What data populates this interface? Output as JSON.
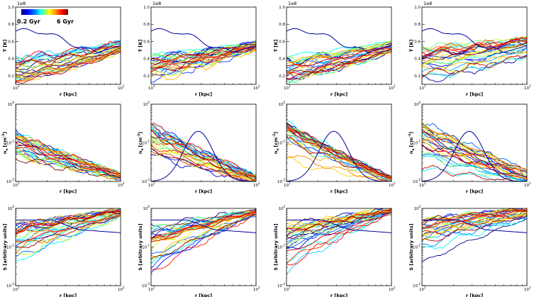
{
  "figure": {
    "colorbar": {
      "label_left": "0.2 Gyr",
      "label_right": "6 Gyr",
      "colormap": "jet",
      "tmin_gyr": 0.2,
      "tmax_gyr": 6.0
    },
    "colors": {
      "jet": [
        "#00007f",
        "#0000ff",
        "#007fff",
        "#00ffff",
        "#7fff7f",
        "#ffff00",
        "#ff7f00",
        "#ff0000",
        "#7f0000"
      ]
    }
  },
  "chart_data": [
    {
      "type": "line",
      "row": "T",
      "col": 1,
      "ylabel": "T [K]",
      "xlabel": "r [kpc]",
      "offset_label": "1e8",
      "xscale": "log",
      "xlim": [
        10,
        100
      ],
      "yscale": "linear",
      "ylim": [
        0.1,
        1.0
      ],
      "xticks": [
        {
          "v": 10,
          "label": "10",
          "sup": "1"
        },
        {
          "v": 100,
          "label": "10",
          "sup": "2"
        }
      ],
      "yticks": [
        {
          "v": 0.2,
          "label": "0.2"
        },
        {
          "v": 0.4,
          "label": "0.4"
        },
        {
          "v": 0.6,
          "label": "0.6"
        },
        {
          "v": 0.8,
          "label": "0.8"
        },
        {
          "v": 1.0,
          "label": "1.0"
        }
      ],
      "series_count": 28,
      "outlier": true,
      "band_start": [
        0.12,
        0.42
      ],
      "band_end": [
        0.46,
        0.6
      ]
    },
    {
      "type": "line",
      "row": "T",
      "col": 2,
      "ylabel": "T [K]",
      "xlabel": "r [kpc]",
      "offset_label": "1e8",
      "xscale": "log",
      "xlim": [
        10,
        100
      ],
      "yscale": "linear",
      "ylim": [
        0.1,
        1.0
      ],
      "xticks": [
        {
          "v": 10,
          "label": "10",
          "sup": "1"
        },
        {
          "v": 100,
          "label": "10",
          "sup": "2"
        }
      ],
      "yticks": [
        {
          "v": 0.2,
          "label": "0.2"
        },
        {
          "v": 0.4,
          "label": "0.4"
        },
        {
          "v": 0.6,
          "label": "0.6"
        },
        {
          "v": 0.8,
          "label": "0.8"
        },
        {
          "v": 1.0,
          "label": "1.0"
        }
      ],
      "series_count": 28,
      "outlier": true,
      "band_start": [
        0.15,
        0.45
      ],
      "band_end": [
        0.5,
        0.6
      ]
    },
    {
      "type": "line",
      "row": "T",
      "col": 3,
      "ylabel": "T [K]",
      "xlabel": "r [kpc]",
      "offset_label": "1e8",
      "xscale": "log",
      "xlim": [
        10,
        100
      ],
      "yscale": "linear",
      "ylim": [
        0.1,
        1.0
      ],
      "xticks": [
        {
          "v": 10,
          "label": "10",
          "sup": "1"
        },
        {
          "v": 100,
          "label": "10",
          "sup": "2"
        }
      ],
      "yticks": [
        {
          "v": 0.2,
          "label": "0.2"
        },
        {
          "v": 0.4,
          "label": "0.4"
        },
        {
          "v": 0.6,
          "label": "0.6"
        },
        {
          "v": 0.8,
          "label": "0.8"
        },
        {
          "v": 1.0,
          "label": "1.0"
        }
      ],
      "series_count": 28,
      "outlier": true,
      "band_start": [
        0.15,
        0.48
      ],
      "band_end": [
        0.48,
        0.62
      ]
    },
    {
      "type": "line",
      "row": "T",
      "col": 4,
      "ylabel": "T [K]",
      "xlabel": "r [kpc]",
      "offset_label": "1e8",
      "xscale": "log",
      "xlim": [
        10,
        100
      ],
      "yscale": "linear",
      "ylim": [
        0.1,
        1.0
      ],
      "xticks": [
        {
          "v": 10,
          "label": "10",
          "sup": "1"
        },
        {
          "v": 100,
          "label": "10",
          "sup": "2"
        }
      ],
      "yticks": [
        {
          "v": 0.2,
          "label": "0.2"
        },
        {
          "v": 0.4,
          "label": "0.4"
        },
        {
          "v": 0.6,
          "label": "0.6"
        },
        {
          "v": 0.8,
          "label": "0.8"
        },
        {
          "v": 1.0,
          "label": "1.0"
        }
      ],
      "series_count": 28,
      "outlier": true,
      "band_start": [
        0.15,
        0.55
      ],
      "band_end": [
        0.42,
        0.66
      ]
    },
    {
      "type": "line",
      "row": "n",
      "col": 1,
      "ylabel": "n",
      "ylabel_sub": "e",
      "ylabel_unit": "[cm",
      "ylabel_sup": "-3",
      "xlabel": "r [kpc]",
      "xscale": "log",
      "xlim": [
        10,
        100
      ],
      "yscale": "log",
      "ylim": [
        0.01,
        1.0
      ],
      "xticks": [
        {
          "v": 10,
          "label": "10",
          "sup": "1"
        },
        {
          "v": 100,
          "label": "10",
          "sup": "2"
        }
      ],
      "yticks": [
        {
          "v": 0.01,
          "label": "10",
          "sup": "-2"
        },
        {
          "v": 0.1,
          "label": "10",
          "sup": "-1"
        },
        {
          "v": 1.0,
          "label": "10",
          "sup": "0"
        }
      ],
      "series_count": 28,
      "outlier": false,
      "band_start": [
        0.04,
        0.18
      ],
      "band_end": [
        0.012,
        0.016
      ]
    },
    {
      "type": "line",
      "row": "n",
      "col": 2,
      "ylabel": "n",
      "ylabel_sub": "e",
      "ylabel_unit": "[cm",
      "ylabel_sup": "-3",
      "xlabel": "r [kpc]",
      "xscale": "log",
      "xlim": [
        10,
        100
      ],
      "yscale": "log",
      "ylim": [
        0.01,
        1.0
      ],
      "xticks": [
        {
          "v": 10,
          "label": "10",
          "sup": "1"
        },
        {
          "v": 100,
          "label": "10",
          "sup": "2"
        }
      ],
      "yticks": [
        {
          "v": 0.01,
          "label": "10",
          "sup": "-2"
        },
        {
          "v": 0.1,
          "label": "10",
          "sup": "-1"
        },
        {
          "v": 1.0,
          "label": "10",
          "sup": "0"
        }
      ],
      "series_count": 28,
      "outlier": true,
      "band_start": [
        0.04,
        0.3
      ],
      "band_end": [
        0.009,
        0.014
      ]
    },
    {
      "type": "line",
      "row": "n",
      "col": 3,
      "ylabel": "n",
      "ylabel_sub": "e",
      "ylabel_unit": "[cm",
      "ylabel_sup": "-3",
      "xlabel": "r [kpc]",
      "xscale": "log",
      "xlim": [
        10,
        100
      ],
      "yscale": "log",
      "ylim": [
        0.01,
        1.0
      ],
      "xticks": [
        {
          "v": 10,
          "label": "10",
          "sup": "1"
        },
        {
          "v": 100,
          "label": "10",
          "sup": "2"
        }
      ],
      "yticks": [
        {
          "v": 0.01,
          "label": "10",
          "sup": "-2"
        },
        {
          "v": 0.1,
          "label": "10",
          "sup": "-1"
        },
        {
          "v": 1.0,
          "label": "10",
          "sup": "0"
        }
      ],
      "series_count": 28,
      "outlier": true,
      "band_start": [
        0.03,
        0.35
      ],
      "band_end": [
        0.009,
        0.013
      ]
    },
    {
      "type": "line",
      "row": "n",
      "col": 4,
      "ylabel": "n",
      "ylabel_sub": "e",
      "ylabel_unit": "[cm",
      "ylabel_sup": "-3",
      "xlabel": "r [kpc]",
      "xscale": "log",
      "xlim": [
        10,
        100
      ],
      "yscale": "log",
      "ylim": [
        0.01,
        1.0
      ],
      "xticks": [
        {
          "v": 10,
          "label": "10",
          "sup": "1"
        },
        {
          "v": 100,
          "label": "10",
          "sup": "2"
        }
      ],
      "yticks": [
        {
          "v": 0.01,
          "label": "10",
          "sup": "-2"
        },
        {
          "v": 0.1,
          "label": "10",
          "sup": "-1"
        },
        {
          "v": 1.0,
          "label": "10",
          "sup": "0"
        }
      ],
      "series_count": 28,
      "outlier": true,
      "band_start": [
        0.02,
        0.35
      ],
      "band_end": [
        0.009,
        0.02
      ]
    },
    {
      "type": "line",
      "row": "S",
      "col": 1,
      "ylabel": "S [arbitrary units]",
      "xlabel": "r [kpc]",
      "xscale": "log",
      "xlim": [
        10,
        100
      ],
      "yscale": "log",
      "ylim": [
        0.01,
        1.0
      ],
      "xticks": [
        {
          "v": 10,
          "label": "10",
          "sup": "1"
        },
        {
          "v": 100,
          "label": "10",
          "sup": "2"
        }
      ],
      "yticks": [
        {
          "v": 0.01,
          "label": "10",
          "sup": "-2"
        },
        {
          "v": 0.1,
          "label": "10",
          "sup": "-1"
        },
        {
          "v": 1.0,
          "label": "10",
          "sup": "0"
        }
      ],
      "series_count": 28,
      "outlier": true,
      "band_start": [
        0.03,
        0.35
      ],
      "band_end": [
        0.6,
        0.95
      ]
    },
    {
      "type": "line",
      "row": "S",
      "col": 2,
      "ylabel": "S [arbitrary units]",
      "xlabel": "r [kpc]",
      "xscale": "log",
      "xlim": [
        10,
        100
      ],
      "yscale": "log",
      "ylim": [
        0.01,
        1.0
      ],
      "xticks": [
        {
          "v": 10,
          "label": "10",
          "sup": "1"
        },
        {
          "v": 100,
          "label": "10",
          "sup": "2"
        }
      ],
      "yticks": [
        {
          "v": 0.01,
          "label": "10",
          "sup": "-2"
        },
        {
          "v": 0.1,
          "label": "10",
          "sup": "-1"
        },
        {
          "v": 1.0,
          "label": "10",
          "sup": "0"
        }
      ],
      "series_count": 28,
      "outlier": true,
      "band_start": [
        0.02,
        0.3
      ],
      "band_end": [
        0.7,
        0.95
      ]
    },
    {
      "type": "line",
      "row": "S",
      "col": 3,
      "ylabel": "S [arbitrary units]",
      "xlabel": "r [kpc]",
      "xscale": "log",
      "xlim": [
        10,
        100
      ],
      "yscale": "log",
      "ylim": [
        0.01,
        1.0
      ],
      "xticks": [
        {
          "v": 10,
          "label": "10",
          "sup": "1"
        },
        {
          "v": 100,
          "label": "10",
          "sup": "2"
        }
      ],
      "yticks": [
        {
          "v": 0.01,
          "label": "10",
          "sup": "-2"
        },
        {
          "v": 0.1,
          "label": "10",
          "sup": "-1"
        },
        {
          "v": 1.0,
          "label": "10",
          "sup": "0"
        }
      ],
      "series_count": 28,
      "outlier": true,
      "band_start": [
        0.02,
        0.35
      ],
      "band_end": [
        0.75,
        1.0
      ]
    },
    {
      "type": "line",
      "row": "S",
      "col": 4,
      "ylabel": "S [arbitrary units]",
      "xlabel": "r [kpc]",
      "xscale": "log",
      "xlim": [
        10,
        100
      ],
      "yscale": "log",
      "ylim": [
        0.01,
        1.0
      ],
      "xticks": [
        {
          "v": 10,
          "label": "10",
          "sup": "1"
        },
        {
          "v": 100,
          "label": "10",
          "sup": "2"
        }
      ],
      "yticks": [
        {
          "v": 0.01,
          "label": "10",
          "sup": "-2"
        },
        {
          "v": 0.1,
          "label": "10",
          "sup": "-1"
        },
        {
          "v": 1.0,
          "label": "10",
          "sup": "0"
        }
      ],
      "series_count": 28,
      "outlier": true,
      "band_start": [
        0.02,
        0.5
      ],
      "band_end": [
        0.5,
        1.0
      ]
    }
  ]
}
